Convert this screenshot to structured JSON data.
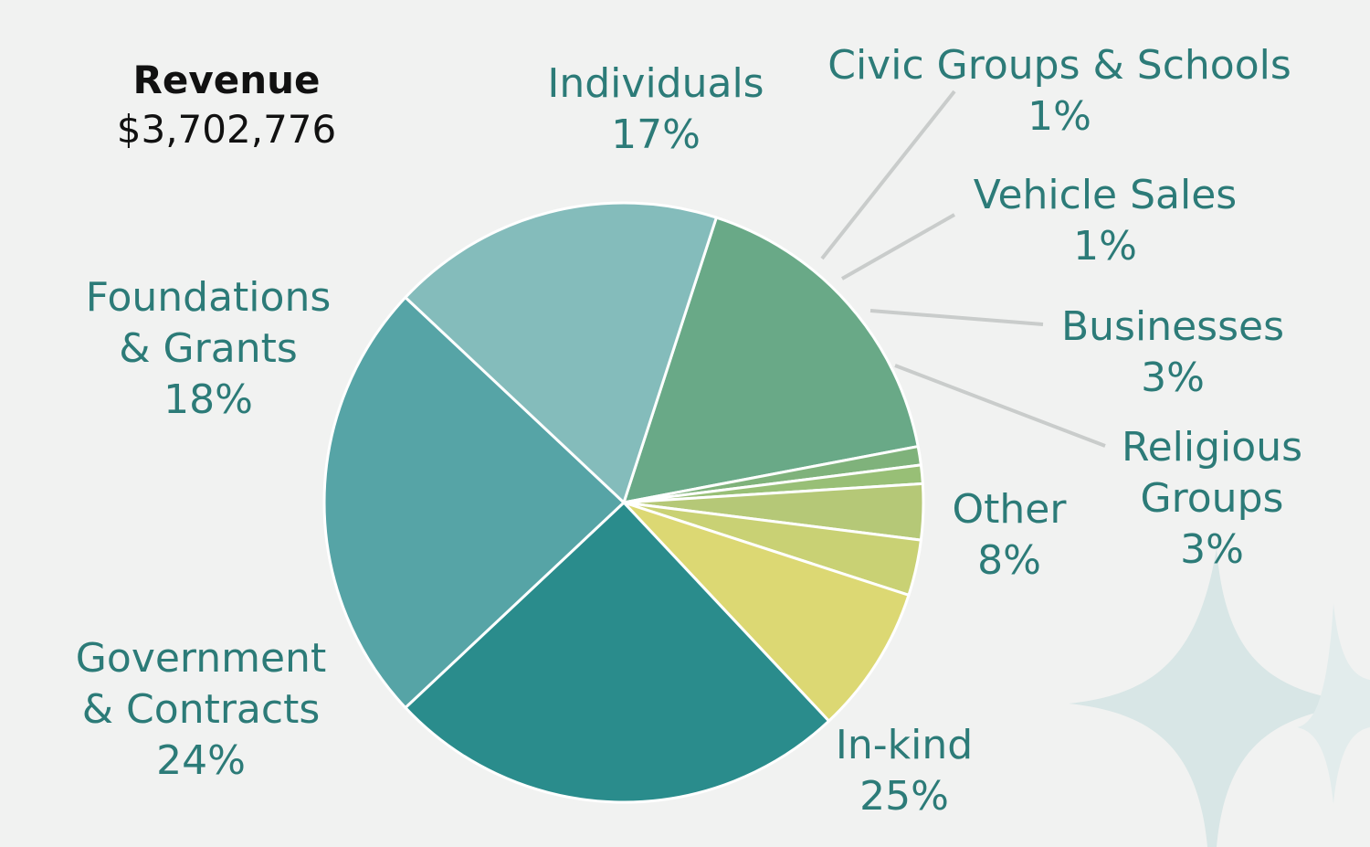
{
  "header": {
    "title": "Revenue",
    "total": "$3,702,776"
  },
  "chart_data": {
    "type": "pie",
    "start_angle_deg": -72,
    "slices": [
      {
        "key": "individuals",
        "label_lines": [
          "Individuals"
        ],
        "pct_label": "17%",
        "value": 17,
        "color": "#69a987"
      },
      {
        "key": "civic",
        "label_lines": [
          "Civic Groups & Schools"
        ],
        "pct_label": "1%",
        "value": 1,
        "color": "#7fb27b"
      },
      {
        "key": "vehicle",
        "label_lines": [
          "Vehicle Sales"
        ],
        "pct_label": "1%",
        "value": 1,
        "color": "#98bf76"
      },
      {
        "key": "businesses",
        "label_lines": [
          "Businesses"
        ],
        "pct_label": "3%",
        "value": 3,
        "color": "#b5c877"
      },
      {
        "key": "religious",
        "label_lines": [
          "Religious",
          "Groups"
        ],
        "pct_label": "3%",
        "value": 3,
        "color": "#c9d174"
      },
      {
        "key": "other",
        "label_lines": [
          "Other"
        ],
        "pct_label": "8%",
        "value": 8,
        "color": "#dcd873"
      },
      {
        "key": "inkind",
        "label_lines": [
          "In-kind"
        ],
        "pct_label": "25%",
        "value": 25,
        "color": "#2a8c8c"
      },
      {
        "key": "government",
        "label_lines": [
          "Government",
          "& Contracts"
        ],
        "pct_label": "24%",
        "value": 24,
        "color": "#56a4a6"
      },
      {
        "key": "foundations",
        "label_lines": [
          "Foundations",
          "& Grants"
        ],
        "pct_label": "18%",
        "value": 18,
        "color": "#84bcbb"
      }
    ],
    "colors": {
      "label_text": "#2c7b78",
      "leader_line": "#c9cccb",
      "background": "#f1f2f1",
      "sparkle": "#d8e6e6"
    }
  }
}
